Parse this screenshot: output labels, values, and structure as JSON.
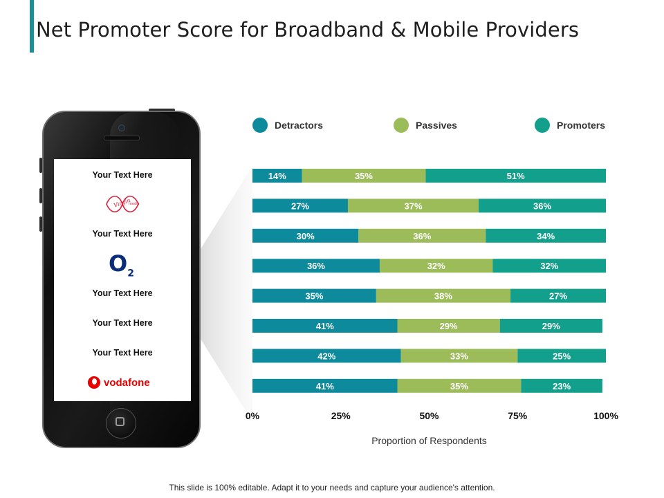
{
  "title": "Net Promoter Score for Broadband & Mobile Providers",
  "footer": "This slide is 100% editable. Adapt it to your needs and capture your audience's attention.",
  "phone_screen": {
    "items": [
      {
        "type": "text",
        "text": "Your Text Here"
      },
      {
        "type": "logo",
        "logo": "virgin-media-logo"
      },
      {
        "type": "text",
        "text": "Your Text Here"
      },
      {
        "type": "logo",
        "logo": "o2-logo",
        "text": "O",
        "sub": "2"
      },
      {
        "type": "text",
        "text": "Your Text Here"
      },
      {
        "type": "text",
        "text": "Your Text Here"
      },
      {
        "type": "text",
        "text": "Your Text Here"
      },
      {
        "type": "logo",
        "logo": "vodafone-logo",
        "text": "vodafone"
      }
    ]
  },
  "colors": {
    "detractors": "#0d8a9c",
    "passives": "#9cbb59",
    "promoters": "#12a08c",
    "accent": "#1b8f96"
  },
  "chart_data": {
    "type": "bar",
    "orientation": "horizontal",
    "stacked": true,
    "percent": true,
    "xlabel": "Proportion of Respondents",
    "xlim": [
      0,
      100
    ],
    "xticks": [
      "0%",
      "25%",
      "50%",
      "75%",
      "100%"
    ],
    "legend": {
      "placement": "top"
    },
    "series": [
      {
        "name": "Detractors",
        "values": [
          14,
          27,
          30,
          36,
          35,
          41,
          42,
          41
        ]
      },
      {
        "name": "Passives",
        "values": [
          35,
          37,
          36,
          32,
          38,
          29,
          33,
          35
        ]
      },
      {
        "name": "Promoters",
        "values": [
          51,
          36,
          34,
          32,
          27,
          29,
          25,
          23
        ]
      }
    ]
  }
}
